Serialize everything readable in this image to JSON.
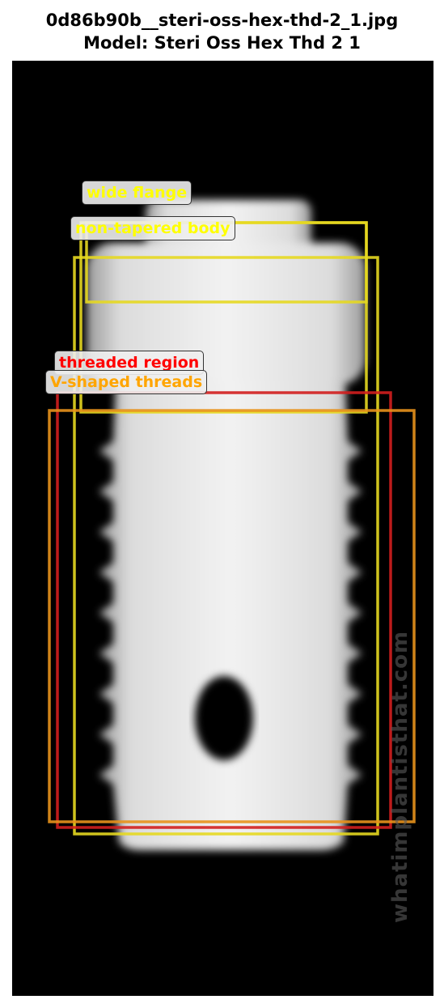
{
  "header": {
    "filename": "0d86b90b__steri-oss-hex-thd-2_1.jpg",
    "model": "Model: Steri Oss Hex Thd 2 1"
  },
  "image": {
    "subject": "implant-xray",
    "watermark_text": "whatimplantisthat.com"
  },
  "annotations": [
    {
      "label": "wide flange",
      "color": "#ffff00",
      "border_color": "#e6d820"
    },
    {
      "label": "non-tapered body",
      "color": "#ffff00",
      "border_color": "#e6d820"
    },
    {
      "label": "threaded region",
      "color": "#ff0000",
      "border_color": "#d21e1e"
    },
    {
      "label": "V-shaped threads",
      "color": "#ffa500",
      "border_color": "#e8921c"
    }
  ]
}
